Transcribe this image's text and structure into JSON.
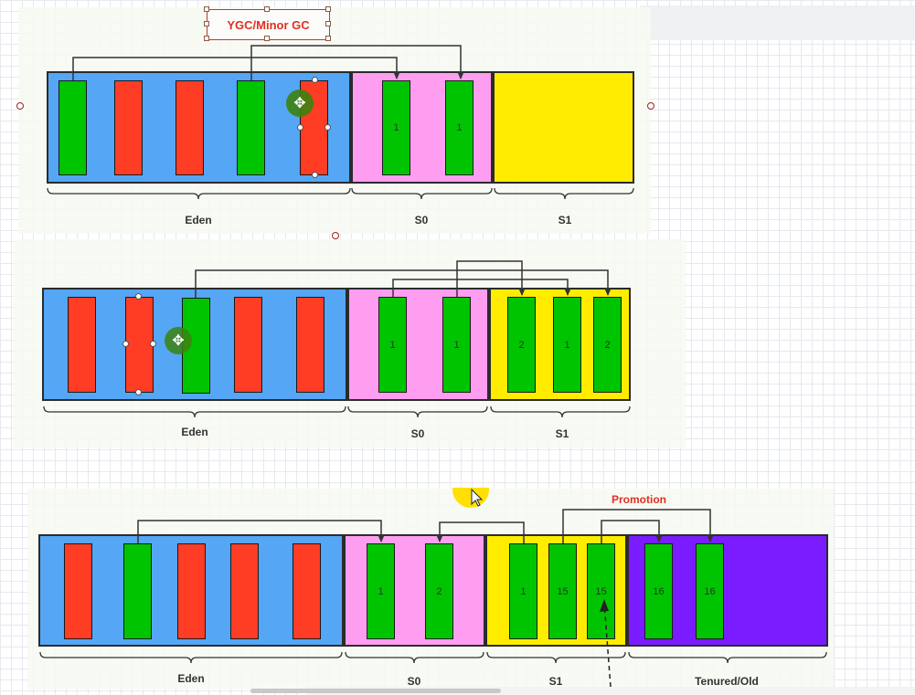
{
  "title": "YGC/Minor GC",
  "promotion_label": "Promotion",
  "colors": {
    "eden": "#55a6f5",
    "s0": "#ff9ef0",
    "s1": "#ffec00",
    "tenured": "#7a1cff",
    "live_object": "#00c400",
    "dead_object": "#ff3c24"
  },
  "diagrams": [
    {
      "eden_label": "Eden",
      "s0_label": "S0",
      "s1_label": "S1",
      "eden": [
        {
          "state": "live",
          "age": ""
        },
        {
          "state": "dead",
          "age": ""
        },
        {
          "state": "dead",
          "age": ""
        },
        {
          "state": "live",
          "age": ""
        },
        {
          "state": "dead",
          "age": ""
        }
      ],
      "s0": [
        {
          "state": "live",
          "age": "1"
        },
        {
          "state": "live",
          "age": "1"
        }
      ],
      "s1": []
    },
    {
      "eden_label": "Eden",
      "s0_label": "S0",
      "s1_label": "S1",
      "eden": [
        {
          "state": "dead",
          "age": ""
        },
        {
          "state": "dead",
          "age": ""
        },
        {
          "state": "live",
          "age": ""
        },
        {
          "state": "dead",
          "age": ""
        },
        {
          "state": "dead",
          "age": ""
        }
      ],
      "s0": [
        {
          "state": "live",
          "age": "1"
        },
        {
          "state": "live",
          "age": "1"
        }
      ],
      "s1": [
        {
          "state": "live",
          "age": "2"
        },
        {
          "state": "live",
          "age": "1"
        },
        {
          "state": "live",
          "age": "2"
        }
      ]
    },
    {
      "eden_label": "Eden",
      "s0_label": "S0",
      "s1_label": "S1",
      "tenured_label": "Tenured/Old",
      "eden": [
        {
          "state": "dead",
          "age": ""
        },
        {
          "state": "live",
          "age": ""
        },
        {
          "state": "dead",
          "age": ""
        },
        {
          "state": "dead",
          "age": ""
        },
        {
          "state": "dead",
          "age": ""
        }
      ],
      "s0": [
        {
          "state": "live",
          "age": "1"
        },
        {
          "state": "live",
          "age": "2"
        }
      ],
      "s1": [
        {
          "state": "live",
          "age": "1"
        },
        {
          "state": "live",
          "age": "15"
        },
        {
          "state": "live",
          "age": "15"
        }
      ],
      "tenured": [
        {
          "state": "live",
          "age": "16"
        },
        {
          "state": "live",
          "age": "16"
        }
      ]
    }
  ]
}
